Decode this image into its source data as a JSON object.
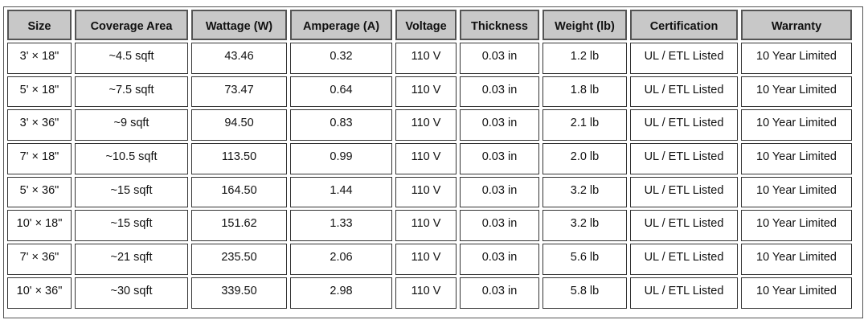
{
  "table": {
    "headers": [
      "Size",
      "Coverage Area",
      "Wattage (W)",
      "Amperage (A)",
      "Voltage",
      "Thickness",
      "Weight (lb)",
      "Certification",
      "Warranty"
    ],
    "rows": [
      [
        "3' × 18\"",
        "~4.5 sqft",
        "43.46",
        "0.32",
        "110 V",
        "0.03 in",
        "1.2 lb",
        "UL / ETL Listed",
        "10 Year Limited"
      ],
      [
        "5' × 18\"",
        "~7.5 sqft",
        "73.47",
        "0.64",
        "110 V",
        "0.03 in",
        "1.8 lb",
        "UL / ETL Listed",
        "10 Year Limited"
      ],
      [
        "3' × 36\"",
        "~9 sqft",
        "94.50",
        "0.83",
        "110 V",
        "0.03 in",
        "2.1 lb",
        "UL / ETL Listed",
        "10 Year Limited"
      ],
      [
        "7' × 18\"",
        "~10.5 sqft",
        "113.50",
        "0.99",
        "110 V",
        "0.03 in",
        "2.0 lb",
        "UL / ETL Listed",
        "10 Year Limited"
      ],
      [
        "5' × 36\"",
        "~15 sqft",
        "164.50",
        "1.44",
        "110 V",
        "0.03 in",
        "3.2 lb",
        "UL / ETL Listed",
        "10 Year Limited"
      ],
      [
        "10' × 18\"",
        "~15 sqft",
        "151.62",
        "1.33",
        "110 V",
        "0.03 in",
        "3.2 lb",
        "UL / ETL Listed",
        "10 Year Limited"
      ],
      [
        "7' × 36\"",
        "~21 sqft",
        "235.50",
        "2.06",
        "110 V",
        "0.03 in",
        "5.6 lb",
        "UL / ETL Listed",
        "10 Year Limited"
      ],
      [
        "10' × 36\"",
        "~30 sqft",
        "339.50",
        "2.98",
        "110 V",
        "0.03 in",
        "5.8 lb",
        "UL / ETL Listed",
        "10 Year Limited"
      ]
    ]
  },
  "colors": {
    "header_background": "#c8c8c8",
    "cell_background": "#ffffff",
    "border": "#333333"
  }
}
